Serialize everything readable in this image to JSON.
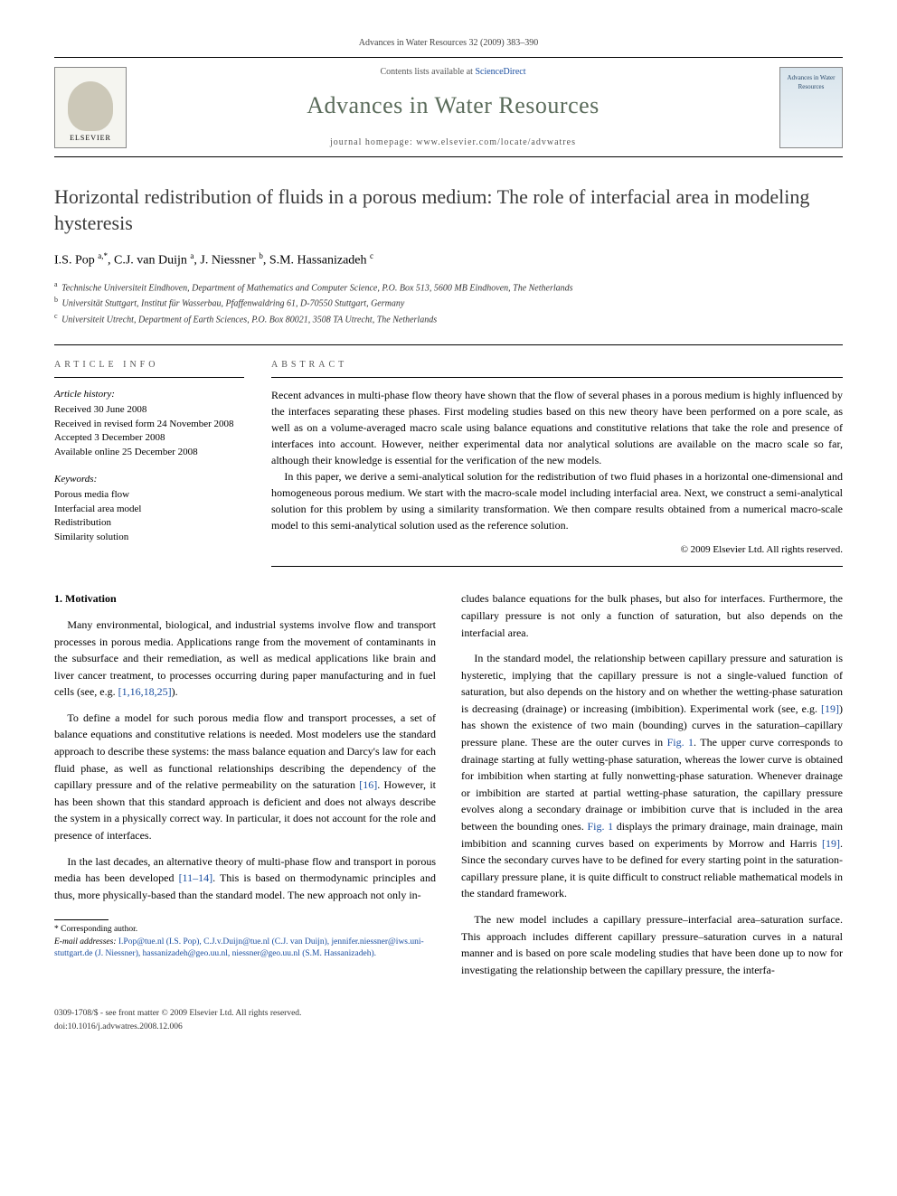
{
  "header": {
    "citation": "Advances in Water Resources 32 (2009) 383–390",
    "contents_line_pre": "Contents lists available at ",
    "contents_link": "ScienceDirect",
    "journal_name": "Advances in Water Resources",
    "homepage_line": "journal homepage: www.elsevier.com/locate/advwatres",
    "elsevier_label": "ELSEVIER",
    "cover_label": "Advances in Water Resources"
  },
  "article": {
    "title": "Horizontal redistribution of fluids in a porous medium: The role of interfacial area in modeling hysteresis",
    "authors_html": "I.S. Pop <sup>a,*</sup>, C.J. van Duijn <sup>a</sup>, J. Niessner <sup>b</sup>, S.M. Hassanizadeh <sup>c</sup>",
    "affiliations": [
      {
        "sup": "a",
        "text": "Technische Universiteit Eindhoven, Department of Mathematics and Computer Science, P.O. Box 513, 5600 MB Eindhoven, The Netherlands"
      },
      {
        "sup": "b",
        "text": "Universität Stuttgart, Institut für Wasserbau, Pfaffenwaldring 61, D-70550 Stuttgart, Germany"
      },
      {
        "sup": "c",
        "text": "Universiteit Utrecht, Department of Earth Sciences, P.O. Box 80021, 3508 TA Utrecht, The Netherlands"
      }
    ]
  },
  "info": {
    "heading": "ARTICLE INFO",
    "history_label": "Article history:",
    "history": [
      "Received 30 June 2008",
      "Received in revised form 24 November 2008",
      "Accepted 3 December 2008",
      "Available online 25 December 2008"
    ],
    "keywords_label": "Keywords:",
    "keywords": [
      "Porous media flow",
      "Interfacial area model",
      "Redistribution",
      "Similarity solution"
    ]
  },
  "abstract": {
    "heading": "ABSTRACT",
    "para1": "Recent advances in multi-phase flow theory have shown that the flow of several phases in a porous medium is highly influenced by the interfaces separating these phases. First modeling studies based on this new theory have been performed on a pore scale, as well as on a volume-averaged macro scale using balance equations and constitutive relations that take the role and presence of interfaces into account. However, neither experimental data nor analytical solutions are available on the macro scale so far, although their knowledge is essential for the verification of the new models.",
    "para2": "In this paper, we derive a semi-analytical solution for the redistribution of two fluid phases in a horizontal one-dimensional and homogeneous porous medium. We start with the macro-scale model including interfacial area. Next, we construct a semi-analytical solution for this problem by using a similarity transformation. We then compare results obtained from a numerical macro-scale model to this semi-analytical solution used as the reference solution.",
    "copyright": "© 2009 Elsevier Ltd. All rights reserved."
  },
  "body": {
    "section_heading": "1. Motivation",
    "col1": {
      "p1": "Many environmental, biological, and industrial systems involve flow and transport processes in porous media. Applications range from the movement of contaminants in the subsurface and their remediation, as well as medical applications like brain and liver cancer treatment, to processes occurring during paper manufacturing and in fuel cells (see, e.g. ",
      "p1_ref": "[1,16,18,25]",
      "p1_tail": ").",
      "p2a": "To define a model for such porous media flow and transport processes, a set of balance equations and constitutive relations is needed. Most modelers use the standard approach to describe these systems: the mass balance equation and Darcy's law for each fluid phase, as well as functional relationships describing the dependency of the capillary pressure and of the relative permeability on the saturation ",
      "p2_ref": "[16]",
      "p2b": ". However, it has been shown that this standard approach is deficient and does not always describe the system in a physically correct way. In particular, it does not account for the role and presence of interfaces.",
      "p3a": "In the last decades, an alternative theory of multi-phase flow and transport in porous media has been developed ",
      "p3_ref": "[11–14]",
      "p3b": ". This is based on thermodynamic principles and thus, more physically-based than the standard model. The new approach not only in-"
    },
    "col2": {
      "p0": "cludes balance equations for the bulk phases, but also for interfaces. Furthermore, the capillary pressure is not only a function of saturation, but also depends on the interfacial area.",
      "p1a": "In the standard model, the relationship between capillary pressure and saturation is hysteretic, implying that the capillary pressure is not a single-valued function of saturation, but also depends on the history and on whether the wetting-phase saturation is decreasing (drainage) or increasing (imbibition). Experimental work (see, e.g. ",
      "p1_ref1": "[19]",
      "p1b": ") has shown the existence of two main (bounding) curves in the saturation–capillary pressure plane. These are the outer curves in ",
      "p1_fig1": "Fig. 1",
      "p1c": ". The upper curve corresponds to drainage starting at fully wetting-phase saturation, whereas the lower curve is obtained for imbibition when starting at fully nonwetting-phase saturation. Whenever drainage or imbibition are started at partial wetting-phase saturation, the capillary pressure evolves along a secondary drainage or imbibition curve that is included in the area between the bounding ones. ",
      "p1_fig2": "Fig. 1",
      "p1d": " displays the primary drainage, main drainage, main imbibition and scanning curves based on experiments by Morrow and Harris ",
      "p1_ref2": "[19]",
      "p1e": ". Since the secondary curves have to be defined for every starting point in the saturation-capillary pressure plane, it is quite difficult to construct reliable mathematical models in the standard framework.",
      "p2": "The new model includes a capillary pressure–interfacial area–saturation surface. This approach includes different capillary pressure–saturation curves in a natural manner and is based on pore scale modeling studies that have been done up to now for investigating the relationship between the capillary pressure, the interfa-"
    }
  },
  "footnote": {
    "corresponding": "* Corresponding author.",
    "emails_label": "E-mail addresses: ",
    "emails": "I.Pop@tue.nl (I.S. Pop), C.J.v.Duijn@tue.nl (C.J. van Duijn), jennifer.niessner@iws.uni-stuttgart.de (J. Niessner), hassanizadeh@geo.uu.nl, niessner@geo.uu.nl (S.M. Hassanizadeh)."
  },
  "bottom": {
    "issn_line": "0309-1708/$ - see front matter © 2009 Elsevier Ltd. All rights reserved.",
    "doi_line": "doi:10.1016/j.advwatres.2008.12.006"
  },
  "style": {
    "link_color": "#1a4ea0",
    "journal_color": "#5a6b5a",
    "text_color": "#000000",
    "background": "#ffffff"
  }
}
